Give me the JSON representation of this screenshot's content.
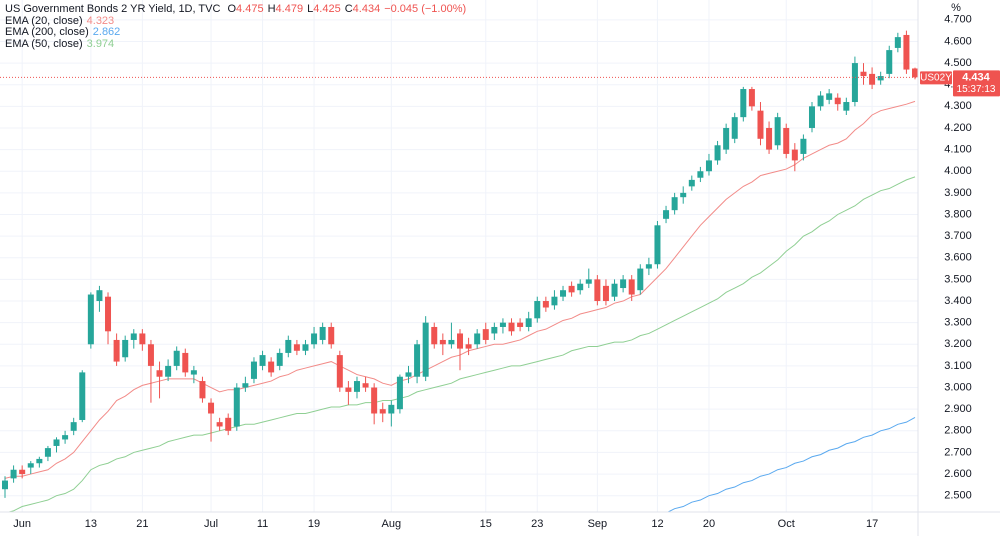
{
  "chart_data": {
    "type": "candlestick",
    "title": "US Government Bonds 2 YR Yield, 1D, TVC",
    "ohlc_letters": [
      "O",
      "H",
      "L",
      "C"
    ],
    "change_text": "−0.045 (−1.00%)",
    "y_unit": "%",
    "symbol": "US02Y",
    "countdown": "15:37:13",
    "last_price_line": true,
    "grid": true,
    "ylim": [
      2.42,
      4.75
    ],
    "yticks": [
      {
        "value": 2.5,
        "label": "2.500"
      },
      {
        "value": 2.6,
        "label": "2.600"
      },
      {
        "value": 2.7,
        "label": "2.700"
      },
      {
        "value": 2.8,
        "label": "2.800"
      },
      {
        "value": 2.9,
        "label": "2.900"
      },
      {
        "value": 3.0,
        "label": "3.000"
      },
      {
        "value": 3.1,
        "label": "3.100"
      },
      {
        "value": 3.2,
        "label": "3.200"
      },
      {
        "value": 3.3,
        "label": "3.300"
      },
      {
        "value": 3.4,
        "label": "3.400"
      },
      {
        "value": 3.5,
        "label": "3.500"
      },
      {
        "value": 3.6,
        "label": "3.600"
      },
      {
        "value": 3.7,
        "label": "3.700"
      },
      {
        "value": 3.8,
        "label": "3.800"
      },
      {
        "value": 3.9,
        "label": "3.900"
      },
      {
        "value": 4.0,
        "label": "4.000"
      },
      {
        "value": 4.1,
        "label": "4.100"
      },
      {
        "value": 4.2,
        "label": "4.200"
      },
      {
        "value": 4.3,
        "label": "4.300"
      },
      {
        "value": 4.4,
        "label": "4.400"
      },
      {
        "value": 4.5,
        "label": "4.500"
      },
      {
        "value": 4.6,
        "label": "4.600"
      },
      {
        "value": 4.7,
        "label": "4.700"
      }
    ],
    "categories": [
      null,
      null,
      "Jun",
      null,
      null,
      null,
      null,
      null,
      null,
      null,
      "13",
      null,
      null,
      null,
      null,
      null,
      "21",
      null,
      null,
      null,
      null,
      null,
      null,
      null,
      "Jul",
      null,
      null,
      null,
      null,
      null,
      "11",
      null,
      null,
      null,
      null,
      null,
      "19",
      null,
      null,
      null,
      null,
      null,
      null,
      null,
      null,
      "Aug",
      null,
      null,
      null,
      null,
      null,
      null,
      null,
      null,
      null,
      null,
      "15",
      null,
      null,
      null,
      null,
      null,
      "23",
      null,
      null,
      null,
      null,
      null,
      null,
      "Sep",
      null,
      null,
      null,
      null,
      null,
      null,
      "12",
      null,
      null,
      null,
      null,
      null,
      "20",
      null,
      null,
      null,
      null,
      null,
      null,
      null,
      null,
      "Oct",
      null,
      null,
      null,
      null,
      null,
      null,
      null,
      null,
      null,
      "17",
      null,
      null,
      null,
      null,
      null
    ],
    "candles": {
      "up_color": "#26a69a",
      "down_color": "#ef5350",
      "open": [
        2.53,
        2.58,
        2.62,
        2.63,
        2.65,
        2.68,
        2.73,
        2.76,
        2.8,
        2.85,
        3.2,
        3.4,
        3.42,
        3.22,
        3.14,
        3.22,
        3.25,
        3.2,
        3.08,
        3.05,
        3.1,
        3.16,
        3.06,
        3.03,
        2.93,
        2.84,
        2.86,
        2.82,
        3.0,
        3.04,
        3.1,
        3.12,
        3.1,
        3.16,
        3.2,
        3.17,
        3.2,
        3.22,
        3.28,
        3.15,
        3.0,
        2.98,
        3.02,
        3.0,
        2.9,
        2.88,
        2.9,
        3.05,
        3.05,
        3.05,
        3.28,
        3.22,
        3.2,
        3.25,
        3.2,
        3.2,
        3.27,
        3.25,
        3.28,
        3.3,
        3.3,
        3.28,
        3.32,
        3.4,
        3.38,
        3.42,
        3.47,
        3.45,
        3.48,
        3.5,
        3.47,
        3.42,
        3.46,
        3.5,
        3.45,
        3.55,
        3.57,
        3.78,
        3.82,
        3.88,
        3.93,
        3.97,
        4.0,
        4.05,
        4.1,
        4.15,
        4.25,
        4.38,
        4.28,
        4.2,
        4.12,
        4.2,
        4.1,
        4.08,
        4.2,
        4.3,
        4.33,
        4.34,
        4.28,
        4.32,
        4.46,
        4.45,
        4.42,
        4.45,
        4.57,
        4.63,
        4.475
      ],
      "high": [
        2.59,
        2.64,
        2.64,
        2.66,
        2.68,
        2.73,
        2.77,
        2.8,
        2.86,
        3.08,
        3.44,
        3.47,
        3.44,
        3.25,
        3.24,
        3.27,
        3.27,
        3.22,
        3.12,
        3.13,
        3.19,
        3.18,
        3.1,
        3.05,
        2.95,
        2.86,
        2.88,
        3.02,
        3.05,
        3.14,
        3.17,
        3.14,
        3.18,
        3.24,
        3.22,
        3.22,
        3.28,
        3.3,
        3.3,
        3.17,
        3.03,
        3.05,
        3.05,
        3.02,
        2.93,
        2.94,
        3.06,
        3.1,
        3.22,
        3.33,
        3.3,
        3.25,
        3.3,
        3.27,
        3.23,
        3.27,
        3.3,
        3.3,
        3.32,
        3.32,
        3.32,
        3.35,
        3.42,
        3.42,
        3.45,
        3.47,
        3.49,
        3.5,
        3.55,
        3.52,
        3.5,
        3.5,
        3.52,
        3.52,
        3.57,
        3.6,
        3.77,
        3.84,
        3.9,
        3.93,
        3.98,
        4.02,
        4.08,
        4.14,
        4.22,
        4.27,
        4.39,
        4.39,
        4.32,
        4.23,
        4.27,
        4.22,
        4.13,
        4.17,
        4.32,
        4.37,
        4.38,
        4.36,
        4.34,
        4.53,
        4.5,
        4.48,
        4.46,
        4.58,
        4.64,
        4.65,
        4.479
      ],
      "low": [
        2.49,
        2.56,
        2.58,
        2.6,
        2.63,
        2.66,
        2.7,
        2.74,
        2.78,
        2.84,
        3.18,
        3.35,
        3.2,
        3.1,
        3.12,
        3.18,
        3.17,
        2.93,
        2.95,
        3.03,
        3.08,
        3.05,
        3.02,
        2.93,
        2.75,
        2.8,
        2.78,
        2.8,
        2.98,
        3.02,
        3.08,
        3.05,
        3.08,
        3.14,
        3.15,
        3.15,
        3.18,
        3.2,
        3.18,
        2.98,
        2.92,
        2.95,
        2.98,
        2.83,
        2.84,
        2.82,
        2.88,
        3.02,
        3.02,
        3.03,
        3.18,
        3.15,
        3.18,
        3.08,
        3.15,
        3.18,
        3.2,
        3.22,
        3.25,
        3.24,
        3.26,
        3.26,
        3.3,
        3.35,
        3.36,
        3.4,
        3.42,
        3.43,
        3.46,
        3.38,
        3.38,
        3.4,
        3.44,
        3.4,
        3.43,
        3.52,
        3.55,
        3.76,
        3.8,
        3.85,
        3.91,
        3.95,
        3.98,
        4.03,
        4.08,
        4.13,
        4.23,
        4.28,
        4.12,
        4.08,
        4.1,
        4.06,
        4.0,
        4.05,
        4.18,
        4.28,
        4.31,
        4.28,
        4.26,
        4.3,
        4.4,
        4.38,
        4.4,
        4.43,
        4.55,
        4.45,
        4.425
      ],
      "close": [
        2.57,
        2.62,
        2.6,
        2.65,
        2.67,
        2.72,
        2.76,
        2.78,
        2.84,
        3.07,
        3.43,
        3.45,
        3.26,
        3.12,
        3.22,
        3.25,
        3.2,
        3.1,
        3.05,
        3.1,
        3.17,
        3.07,
        3.08,
        2.95,
        2.88,
        2.82,
        2.8,
        3.0,
        3.02,
        3.12,
        3.15,
        3.07,
        3.16,
        3.22,
        3.17,
        3.2,
        3.25,
        3.28,
        3.2,
        3.0,
        2.98,
        3.03,
        3.0,
        2.88,
        2.88,
        2.92,
        3.05,
        3.07,
        3.2,
        3.3,
        3.2,
        3.2,
        3.22,
        3.18,
        3.18,
        3.25,
        3.22,
        3.28,
        3.3,
        3.26,
        3.28,
        3.32,
        3.4,
        3.37,
        3.42,
        3.45,
        3.44,
        3.48,
        3.5,
        3.4,
        3.4,
        3.48,
        3.5,
        3.43,
        3.55,
        3.57,
        3.75,
        3.82,
        3.88,
        3.9,
        3.96,
        4.0,
        4.05,
        4.12,
        4.2,
        4.25,
        4.38,
        4.3,
        4.15,
        4.1,
        4.25,
        4.08,
        4.05,
        4.15,
        4.3,
        4.35,
        4.36,
        4.31,
        4.32,
        4.5,
        4.44,
        4.4,
        4.44,
        4.56,
        4.62,
        4.47,
        4.434
      ]
    },
    "series": [
      {
        "name": "EMA (20, close)",
        "color": "#f28b88",
        "values": [
          2.58,
          2.59,
          2.59,
          2.6,
          2.61,
          2.62,
          2.65,
          2.67,
          2.7,
          2.75,
          2.8,
          2.85,
          2.89,
          2.94,
          2.96,
          2.99,
          3.01,
          3.02,
          3.03,
          3.04,
          3.04,
          3.04,
          3.04,
          3.02,
          3.0,
          2.98,
          2.99,
          2.99,
          3.0,
          3.01,
          3.02,
          3.03,
          3.05,
          3.06,
          3.08,
          3.09,
          3.1,
          3.11,
          3.12,
          3.1,
          3.08,
          3.06,
          3.05,
          3.04,
          3.02,
          3.01,
          3.03,
          3.04,
          3.06,
          3.08,
          3.1,
          3.12,
          3.14,
          3.15,
          3.17,
          3.18,
          3.19,
          3.2,
          3.2,
          3.21,
          3.22,
          3.24,
          3.26,
          3.27,
          3.29,
          3.31,
          3.32,
          3.34,
          3.35,
          3.36,
          3.37,
          3.39,
          3.4,
          3.42,
          3.43,
          3.47,
          3.51,
          3.55,
          3.6,
          3.65,
          3.7,
          3.75,
          3.79,
          3.83,
          3.87,
          3.9,
          3.93,
          3.95,
          3.98,
          3.99,
          4.0,
          4.01,
          4.03,
          4.06,
          4.08,
          4.1,
          4.12,
          4.13,
          4.15,
          4.19,
          4.22,
          4.26,
          4.28,
          4.29,
          4.3,
          4.31,
          4.323
        ]
      },
      {
        "name": "EMA (200, close)",
        "color": "#5aa9ef",
        "values": [
          null,
          null,
          null,
          null,
          null,
          null,
          null,
          null,
          null,
          null,
          null,
          null,
          null,
          null,
          null,
          null,
          null,
          null,
          null,
          null,
          null,
          null,
          null,
          null,
          null,
          null,
          null,
          null,
          null,
          null,
          null,
          null,
          null,
          null,
          null,
          null,
          null,
          null,
          null,
          null,
          null,
          null,
          null,
          null,
          null,
          null,
          null,
          null,
          null,
          null,
          null,
          null,
          null,
          null,
          null,
          null,
          null,
          null,
          null,
          null,
          null,
          null,
          null,
          null,
          null,
          null,
          null,
          null,
          null,
          null,
          null,
          null,
          null,
          null,
          null,
          null,
          null,
          2.42,
          2.44,
          2.45,
          2.47,
          2.48,
          2.5,
          2.51,
          2.53,
          2.54,
          2.56,
          2.57,
          2.59,
          2.6,
          2.62,
          2.63,
          2.65,
          2.66,
          2.68,
          2.69,
          2.71,
          2.72,
          2.74,
          2.75,
          2.77,
          2.78,
          2.8,
          2.81,
          2.83,
          2.84,
          2.862
        ]
      },
      {
        "name": "EMA (50, close)",
        "color": "#8fcf93",
        "values": [
          2.42,
          2.43,
          2.45,
          2.46,
          2.47,
          2.48,
          2.5,
          2.51,
          2.53,
          2.57,
          2.62,
          2.64,
          2.65,
          2.67,
          2.68,
          2.7,
          2.71,
          2.72,
          2.73,
          2.75,
          2.76,
          2.77,
          2.78,
          2.78,
          2.79,
          2.8,
          2.81,
          2.82,
          2.83,
          2.83,
          2.84,
          2.85,
          2.86,
          2.87,
          2.88,
          2.88,
          2.89,
          2.9,
          2.91,
          2.91,
          2.92,
          2.92,
          2.93,
          2.93,
          2.94,
          2.94,
          2.95,
          2.96,
          2.98,
          2.99,
          3.0,
          3.01,
          3.02,
          3.04,
          3.05,
          3.06,
          3.07,
          3.08,
          3.09,
          3.1,
          3.1,
          3.11,
          3.12,
          3.13,
          3.14,
          3.15,
          3.17,
          3.18,
          3.19,
          3.19,
          3.2,
          3.21,
          3.21,
          3.22,
          3.24,
          3.25,
          3.27,
          3.29,
          3.31,
          3.33,
          3.35,
          3.37,
          3.39,
          3.41,
          3.44,
          3.46,
          3.48,
          3.51,
          3.53,
          3.56,
          3.59,
          3.63,
          3.66,
          3.7,
          3.72,
          3.75,
          3.77,
          3.8,
          3.82,
          3.84,
          3.87,
          3.89,
          3.91,
          3.92,
          3.94,
          3.96,
          3.974
        ]
      }
    ]
  }
}
